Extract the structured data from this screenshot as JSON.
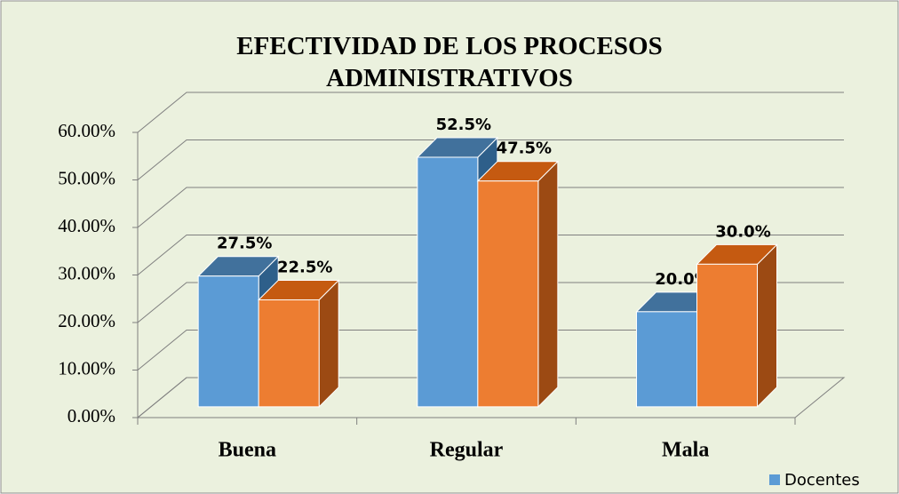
{
  "chart_data": {
    "type": "bar3d",
    "title": "EFECTIVIDAD DE LOS PROCESOS ADMINISTRATIVOS",
    "categories": [
      "Buena",
      "Regular",
      "Mala"
    ],
    "series": [
      {
        "name": "Docentes",
        "color": "#5b9bd5",
        "values": [
          27.5,
          52.5,
          20.0
        ],
        "value_labels": [
          "27.5%",
          "52.5%",
          "20.0%"
        ]
      },
      {
        "color": "#ed7d31",
        "values": [
          22.5,
          47.5,
          30.0
        ],
        "value_labels": [
          "22.5%",
          "47.5%",
          "30.0%"
        ]
      }
    ],
    "ylim": [
      0,
      60
    ],
    "yticks": [
      {
        "value": 0,
        "label": "0.00%"
      },
      {
        "value": 10,
        "label": "10.00%"
      },
      {
        "value": 20,
        "label": "20.00%"
      },
      {
        "value": 30,
        "label": "30.00%"
      },
      {
        "value": 40,
        "label": "40.00%"
      },
      {
        "value": 50,
        "label": "50.00%"
      },
      {
        "value": 60,
        "label": "60.00%"
      }
    ],
    "grid": true,
    "legend": "bottom-right"
  }
}
